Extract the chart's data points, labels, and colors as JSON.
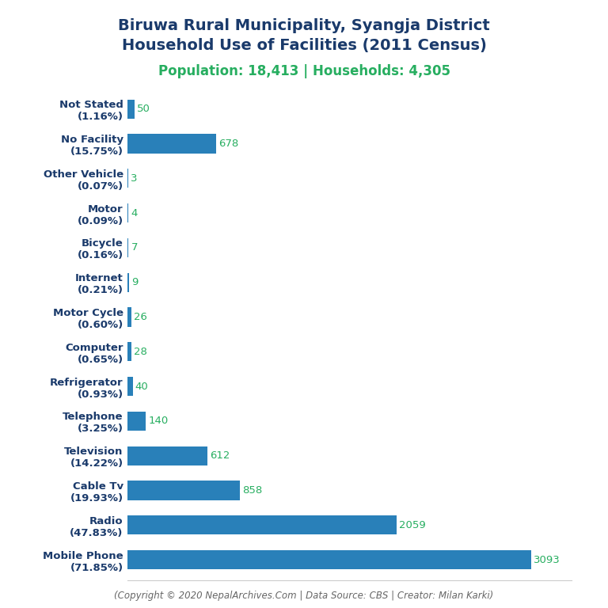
{
  "title_line1": "Biruwa Rural Municipality, Syangja District",
  "title_line2": "Household Use of Facilities (2011 Census)",
  "subtitle": "Population: 18,413 | Households: 4,305",
  "footer": "(Copyright © 2020 NepalArchives.Com | Data Source: CBS | Creator: Milan Karki)",
  "categories": [
    "Not Stated\n(1.16%)",
    "No Facility\n(15.75%)",
    "Other Vehicle\n(0.07%)",
    "Motor\n(0.09%)",
    "Bicycle\n(0.16%)",
    "Internet\n(0.21%)",
    "Motor Cycle\n(0.60%)",
    "Computer\n(0.65%)",
    "Refrigerator\n(0.93%)",
    "Telephone\n(3.25%)",
    "Television\n(14.22%)",
    "Cable Tv\n(19.93%)",
    "Radio\n(47.83%)",
    "Mobile Phone\n(71.85%)"
  ],
  "values": [
    50,
    678,
    3,
    4,
    7,
    9,
    26,
    28,
    40,
    140,
    612,
    858,
    2059,
    3093
  ],
  "bar_color": "#2980b9",
  "value_color": "#27ae60",
  "title_color": "#1a3a6b",
  "subtitle_color": "#27ae60",
  "footer_color": "#666666",
  "background_color": "#ffffff",
  "xlim": [
    0,
    3400
  ],
  "title_fontsize": 14,
  "subtitle_fontsize": 12,
  "label_fontsize": 9.5,
  "value_fontsize": 9.5,
  "footer_fontsize": 8.5
}
